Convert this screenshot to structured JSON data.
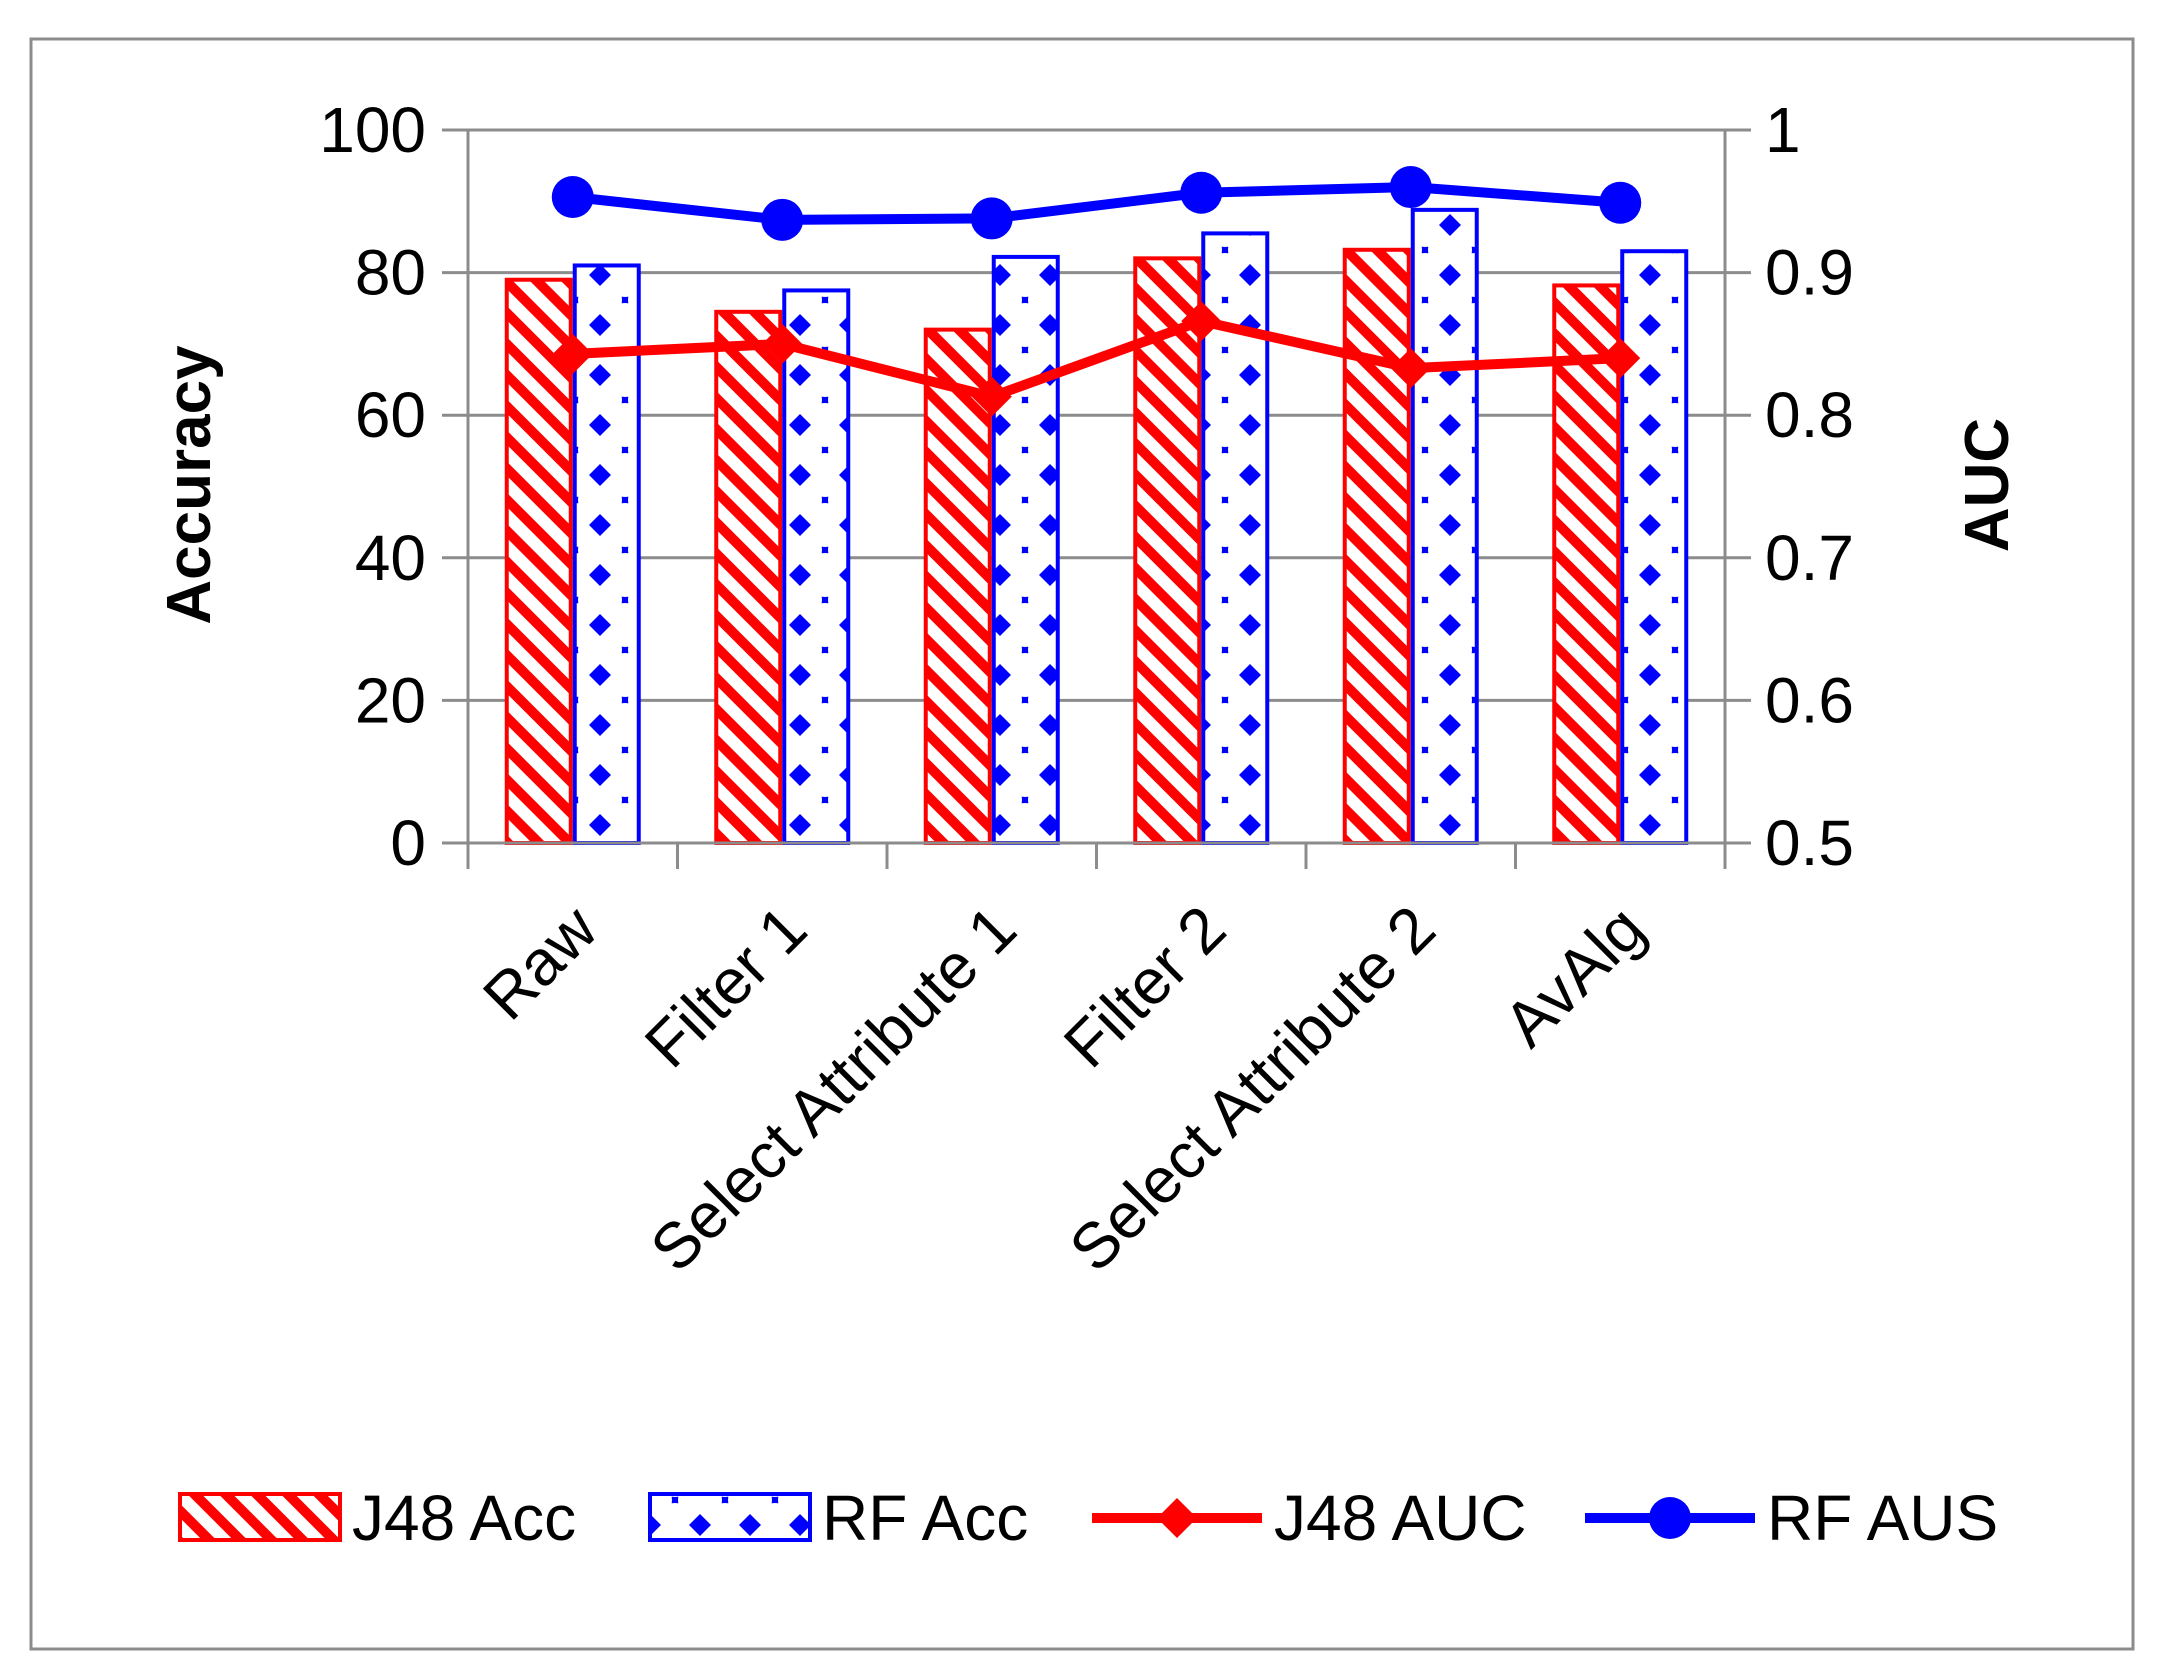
{
  "chart_data": {
    "type": "bar",
    "title": "",
    "categories": [
      "Raw",
      "Filter 1",
      "Select Attribute 1",
      "Filter 2",
      "Select Attribute 2",
      "AvAlg"
    ],
    "ylabel": "Accuracy",
    "y2label": "AUC",
    "ylim": [
      0,
      100
    ],
    "y2lim": [
      0.5,
      1
    ],
    "yticks": [
      "0",
      "20",
      "40",
      "60",
      "80",
      "100"
    ],
    "y2ticks": [
      "0.5",
      "0.6",
      "0.7",
      "0.8",
      "0.9",
      "1"
    ],
    "grid": true,
    "legend_position": "bottom",
    "series": [
      {
        "name": "J48 Acc",
        "type": "bar",
        "axis": "left",
        "color": "#ff0000",
        "pattern": "diagonal-stripes",
        "values": [
          79,
          74.5,
          72,
          82,
          83.2,
          78.2
        ]
      },
      {
        "name": "RF Acc",
        "type": "bar",
        "axis": "left",
        "color": "#0000ff",
        "pattern": "diamond-dots",
        "values": [
          81,
          77.5,
          82.2,
          85.5,
          88.8,
          83
        ]
      },
      {
        "name": "J48 AUC",
        "type": "line",
        "axis": "right",
        "color": "#ff0000",
        "marker": "diamond",
        "values": [
          0.843,
          0.85,
          0.813,
          0.866,
          0.833,
          0.84
        ]
      },
      {
        "name": "RF AUS",
        "type": "line",
        "axis": "right",
        "color": "#0000ff",
        "marker": "circle",
        "values": [
          0.953,
          0.937,
          0.938,
          0.956,
          0.96,
          0.949
        ]
      }
    ]
  }
}
